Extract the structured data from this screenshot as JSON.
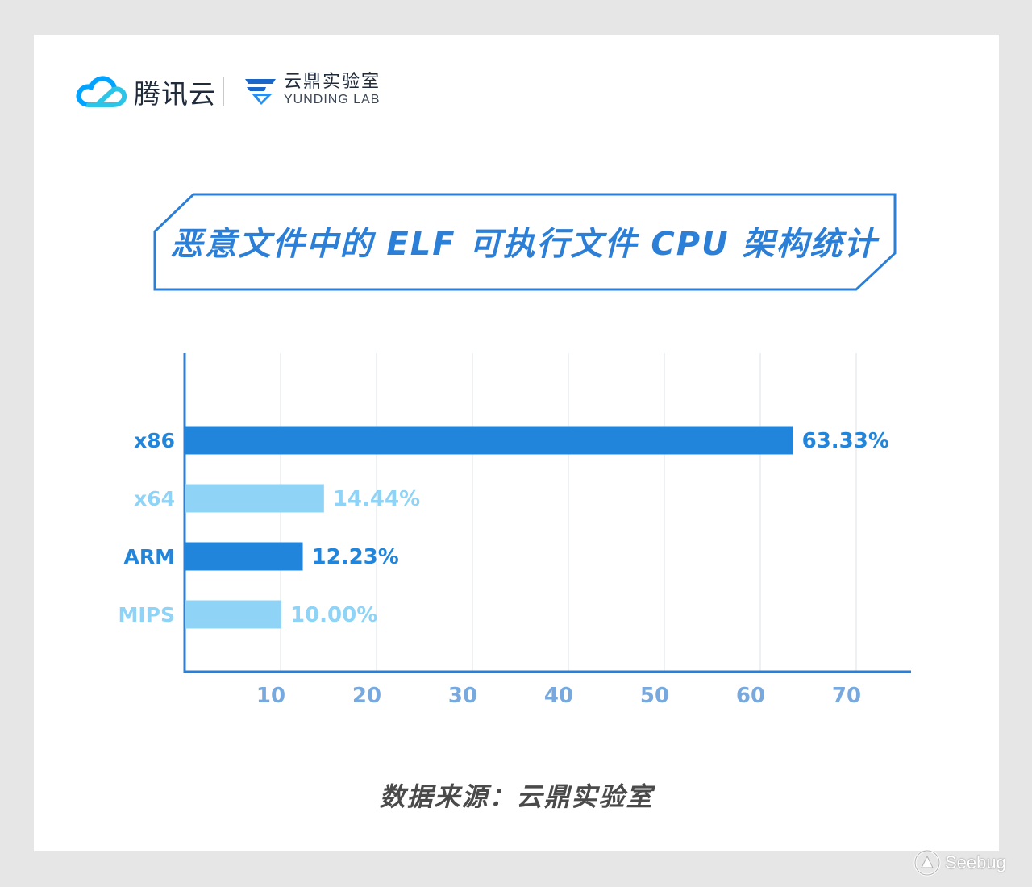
{
  "header": {
    "tencent_brand": "腾讯云",
    "yunding_cn": "云鼎实验室",
    "yunding_en": "YUNDING LAB"
  },
  "title": "恶意文件中的 ELF 可执行文件 CPU 架构统计",
  "source": "数据来源：云鼎实验室",
  "watermark": "Seebug",
  "colors": {
    "dark_bar": "#2186db",
    "light_bar": "#8fd3f6",
    "axis": "#2b7fd6",
    "grid": "#eef1f4",
    "tick": "#78a9de"
  },
  "chart_data": {
    "type": "bar",
    "orientation": "horizontal",
    "categories": [
      "x86",
      "x64",
      "ARM",
      "MIPS"
    ],
    "values": [
      63.33,
      14.44,
      12.23,
      10.0
    ],
    "value_labels": [
      "63.33%",
      "14.44%",
      "12.23%",
      "10.00%"
    ],
    "bar_colors": [
      "#2186db",
      "#8fd3f6",
      "#2186db",
      "#8fd3f6"
    ],
    "x_ticks": [
      10,
      20,
      30,
      40,
      50,
      60,
      70
    ],
    "xlim": [
      0,
      75
    ],
    "grid": true
  }
}
